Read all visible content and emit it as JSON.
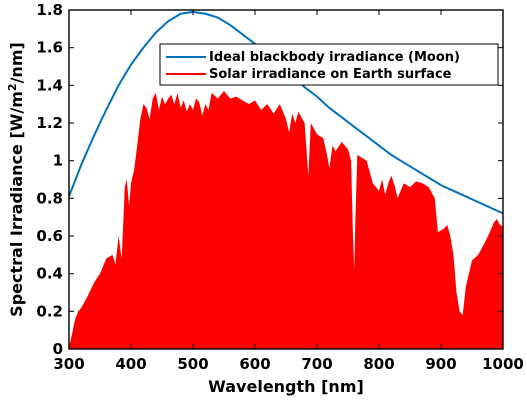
{
  "colors": {
    "moon_line": "#0072BD",
    "solar_fill": "#FF0000",
    "axis": "#000000",
    "background": "#FFFFFF"
  },
  "chart_data": {
    "type": "area",
    "title": "",
    "xlabel": "Wavelength [nm]",
    "ylabel_prefix": "Spectral Irradiance [W/m",
    "ylabel_sup": "2",
    "ylabel_suffix": "/nm]",
    "xlim": [
      300,
      1000
    ],
    "ylim": [
      0,
      1.8
    ],
    "xticks": [
      300,
      400,
      500,
      600,
      700,
      800,
      900,
      1000
    ],
    "xtick_labels": [
      "300",
      "400",
      "500",
      "600",
      "700",
      "800",
      "900",
      "1000"
    ],
    "yticks": [
      0,
      0.2,
      0.4,
      0.6,
      0.8,
      1,
      1.2,
      1.4,
      1.6,
      1.8
    ],
    "ytick_labels": [
      "0",
      "0.2",
      "0.4",
      "0.6",
      "0.8",
      "1",
      "1.2",
      "1.4",
      "1.6",
      "1.8"
    ],
    "grid": false,
    "legend_position": "top-right",
    "series": [
      {
        "name": "Ideal blackbody irradiance (Moon)",
        "style": "line",
        "color": "#0072BD",
        "x": [
          300,
          320,
          340,
          360,
          380,
          400,
          420,
          440,
          460,
          480,
          500,
          520,
          540,
          560,
          580,
          600,
          620,
          640,
          660,
          680,
          700,
          720,
          740,
          760,
          780,
          800,
          820,
          840,
          860,
          880,
          900,
          920,
          940,
          960,
          980,
          1000
        ],
        "y": [
          0.81,
          0.98,
          1.13,
          1.27,
          1.4,
          1.51,
          1.6,
          1.68,
          1.74,
          1.78,
          1.79,
          1.78,
          1.76,
          1.72,
          1.67,
          1.62,
          1.57,
          1.51,
          1.45,
          1.39,
          1.34,
          1.28,
          1.23,
          1.18,
          1.13,
          1.08,
          1.03,
          0.99,
          0.95,
          0.91,
          0.87,
          0.84,
          0.81,
          0.78,
          0.75,
          0.72
        ]
      },
      {
        "name": "Solar irradiance on Earth surface",
        "style": "area",
        "color": "#FF0000",
        "x": [
          300,
          305,
          310,
          315,
          320,
          330,
          340,
          350,
          360,
          370,
          375,
          380,
          385,
          390,
          393,
          397,
          400,
          405,
          410,
          415,
          420,
          425,
          430,
          435,
          440,
          445,
          450,
          455,
          460,
          465,
          470,
          475,
          480,
          485,
          490,
          495,
          500,
          505,
          510,
          515,
          520,
          525,
          530,
          540,
          550,
          560,
          570,
          580,
          590,
          600,
          610,
          620,
          630,
          640,
          650,
          655,
          660,
          665,
          670,
          680,
          686,
          690,
          700,
          710,
          715,
          720,
          725,
          730,
          740,
          745,
          750,
          755,
          758,
          760,
          762,
          765,
          770,
          780,
          790,
          800,
          805,
          810,
          815,
          820,
          825,
          830,
          840,
          850,
          860,
          870,
          880,
          890,
          895,
          900,
          905,
          910,
          915,
          920,
          925,
          930,
          935,
          940,
          950,
          960,
          970,
          980,
          985,
          990,
          995,
          1000
        ],
        "y": [
          0.01,
          0.08,
          0.16,
          0.2,
          0.22,
          0.28,
          0.35,
          0.4,
          0.48,
          0.5,
          0.45,
          0.6,
          0.48,
          0.86,
          0.9,
          0.76,
          0.88,
          0.95,
          1.08,
          1.22,
          1.3,
          1.28,
          1.22,
          1.33,
          1.36,
          1.27,
          1.34,
          1.3,
          1.33,
          1.35,
          1.3,
          1.36,
          1.28,
          1.32,
          1.26,
          1.3,
          1.27,
          1.33,
          1.31,
          1.24,
          1.3,
          1.27,
          1.36,
          1.33,
          1.37,
          1.33,
          1.34,
          1.32,
          1.3,
          1.32,
          1.27,
          1.3,
          1.25,
          1.3,
          1.22,
          1.15,
          1.25,
          1.2,
          1.26,
          1.2,
          0.92,
          1.2,
          1.14,
          1.12,
          1.05,
          0.96,
          1.08,
          1.05,
          1.1,
          1.08,
          1.06,
          1.0,
          0.6,
          0.42,
          0.7,
          1.03,
          1.02,
          1.0,
          0.88,
          0.84,
          0.9,
          0.82,
          0.88,
          0.92,
          0.87,
          0.8,
          0.88,
          0.86,
          0.89,
          0.88,
          0.86,
          0.8,
          0.62,
          0.63,
          0.64,
          0.66,
          0.6,
          0.5,
          0.3,
          0.2,
          0.18,
          0.33,
          0.47,
          0.5,
          0.56,
          0.63,
          0.67,
          0.69,
          0.66,
          0.65
        ]
      }
    ]
  }
}
